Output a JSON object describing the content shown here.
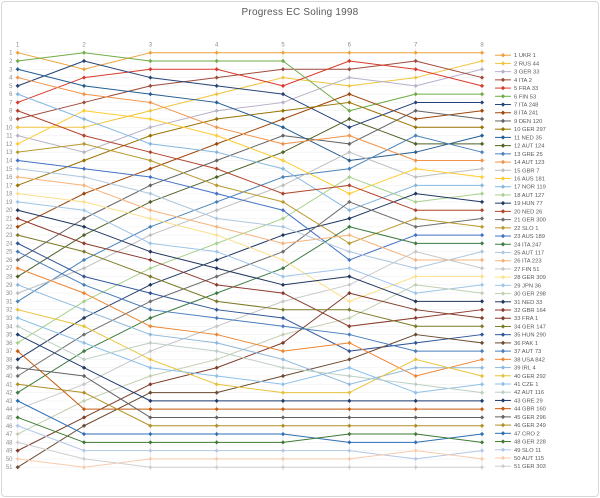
{
  "chart_data": {
    "type": "line",
    "variant": "bump-rank-progress",
    "title": "Progress EC Soling 1998",
    "xlabel": "",
    "ylabel": "",
    "x_ticks": [
      1,
      2,
      3,
      4,
      5,
      6,
      7,
      8
    ],
    "y_axis": {
      "min": 1,
      "max": 51,
      "step": 1,
      "inverted": true
    },
    "grid": true,
    "legend_position": "right",
    "axis_text_color": "#8c8c8c",
    "legend_text_color": "#595959",
    "series": [
      {
        "name": "1 UKR 1",
        "color": "#EDA33B",
        "ranks": [
          1,
          3,
          1,
          1,
          1,
          1,
          1,
          1
        ]
      },
      {
        "name": "2 RUS 44",
        "color": "#EFC53F",
        "ranks": [
          10,
          10,
          8,
          6,
          4,
          5,
          4,
          2
        ]
      },
      {
        "name": "3 GER 33",
        "color": "#B7B1C9",
        "ranks": [
          11,
          13,
          10,
          8,
          7,
          4,
          5,
          3
        ]
      },
      {
        "name": "4 ITA 2",
        "color": "#9E4B3B",
        "ranks": [
          9,
          7,
          5,
          4,
          3,
          3,
          2,
          4
        ]
      },
      {
        "name": "5 FRA 33",
        "color": "#D93A2B",
        "ranks": [
          7,
          4,
          3,
          3,
          5,
          2,
          3,
          5
        ]
      },
      {
        "name": "6 FIN 53",
        "color": "#70AD47",
        "ranks": [
          2,
          1,
          2,
          2,
          2,
          8,
          6,
          6
        ]
      },
      {
        "name": "7 ITA 248",
        "color": "#264478",
        "ranks": [
          5,
          2,
          4,
          5,
          6,
          10,
          7,
          7
        ]
      },
      {
        "name": "8 ITA 241",
        "color": "#9E480E",
        "ranks": [
          22,
          18,
          15,
          12,
          9,
          6,
          9,
          8
        ]
      },
      {
        "name": "9 DEN 120",
        "color": "#636363",
        "ranks": [
          26,
          21,
          17,
          14,
          11,
          12,
          8,
          9
        ]
      },
      {
        "name": "10 GER 297",
        "color": "#997300",
        "ranks": [
          17,
          14,
          11,
          9,
          8,
          7,
          10,
          10
        ]
      },
      {
        "name": "11 NED 35",
        "color": "#255E91",
        "ranks": [
          3,
          5,
          6,
          7,
          10,
          14,
          13,
          11
        ]
      },
      {
        "name": "12 AUT 124",
        "color": "#4F6228",
        "ranks": [
          28,
          23,
          19,
          16,
          13,
          9,
          12,
          12
        ]
      },
      {
        "name": "13 GRE 25",
        "color": "#4983B8",
        "ranks": [
          31,
          26,
          22,
          19,
          16,
          15,
          11,
          13
        ]
      },
      {
        "name": "14 AUT 123",
        "color": "#F0934A",
        "ranks": [
          4,
          6,
          7,
          10,
          12,
          11,
          14,
          14
        ]
      },
      {
        "name": "15 GBR 7",
        "color": "#BFBFBF",
        "ranks": [
          30,
          27,
          23,
          20,
          17,
          13,
          16,
          15
        ]
      },
      {
        "name": "16 AUS 181",
        "color": "#FFCD33",
        "ranks": [
          12,
          8,
          9,
          11,
          14,
          18,
          15,
          16
        ]
      },
      {
        "name": "17 NOR 119",
        "color": "#86B8DF",
        "ranks": [
          6,
          9,
          12,
          13,
          15,
          20,
          17,
          17
        ]
      },
      {
        "name": "18 AUT 127",
        "color": "#A9D18E",
        "ranks": [
          36,
          31,
          27,
          24,
          21,
          16,
          19,
          18
        ]
      },
      {
        "name": "19 HUN 77",
        "color": "#203864",
        "ranks": [
          38,
          33,
          29,
          26,
          23,
          21,
          18,
          19
        ]
      },
      {
        "name": "20 NED 26",
        "color": "#B1432C",
        "ranks": [
          8,
          11,
          13,
          15,
          18,
          17,
          20,
          20
        ]
      },
      {
        "name": "21 GER 300",
        "color": "#6F6F6F",
        "ranks": [
          40,
          35,
          31,
          28,
          25,
          19,
          22,
          21
        ]
      },
      {
        "name": "22 SLO 1",
        "color": "#BA9A2F",
        "ranks": [
          13,
          12,
          14,
          17,
          19,
          24,
          21,
          22
        ]
      },
      {
        "name": "23 AUS 189",
        "color": "#4472C4",
        "ranks": [
          14,
          15,
          16,
          18,
          20,
          26,
          23,
          23
        ]
      },
      {
        "name": "24 ITA 247",
        "color": "#3F7C43",
        "ranks": [
          42,
          37,
          33,
          30,
          27,
          22,
          24,
          24
        ]
      },
      {
        "name": "25 AUT 117",
        "color": "#AEC7E0",
        "ranks": [
          15,
          16,
          18,
          21,
          22,
          25,
          27,
          25
        ]
      },
      {
        "name": "26 ITA 223",
        "color": "#F5B47E",
        "ranks": [
          16,
          17,
          20,
          22,
          24,
          23,
          26,
          26
        ]
      },
      {
        "name": "27 FIN 51",
        "color": "#C8C8C8",
        "ranks": [
          44,
          41,
          37,
          34,
          31,
          29,
          25,
          27
        ]
      },
      {
        "name": "28 GER 309",
        "color": "#FBE08D",
        "ranks": [
          18,
          19,
          21,
          23,
          26,
          31,
          28,
          28
        ]
      },
      {
        "name": "29 JPN 36",
        "color": "#9FC5E8",
        "ranks": [
          19,
          20,
          24,
          25,
          28,
          27,
          30,
          29
        ]
      },
      {
        "name": "30 GER 298",
        "color": "#C2CFB2",
        "ranks": [
          47,
          43,
          40,
          38,
          35,
          33,
          29,
          30
        ]
      },
      {
        "name": "31 NED 33",
        "color": "#22375E",
        "ranks": [
          20,
          22,
          25,
          27,
          29,
          28,
          31,
          31
        ]
      },
      {
        "name": "32 GBR 164",
        "color": "#8C3A2E",
        "ranks": [
          21,
          24,
          26,
          29,
          30,
          34,
          33,
          32
        ]
      },
      {
        "name": "33 FRA 1",
        "color": "#7E3B2A",
        "ranks": [
          49,
          45,
          41,
          39,
          36,
          30,
          32,
          33
        ]
      },
      {
        "name": "34 GER 147",
        "color": "#7E7A29",
        "ranks": [
          23,
          25,
          28,
          31,
          32,
          32,
          34,
          34
        ]
      },
      {
        "name": "35 HUN 290",
        "color": "#2F5597",
        "ranks": [
          24,
          28,
          30,
          32,
          33,
          37,
          36,
          35
        ]
      },
      {
        "name": "36 PAK 1",
        "color": "#6B4A2F",
        "ranks": [
          51,
          46,
          42,
          42,
          40,
          38,
          35,
          36
        ]
      },
      {
        "name": "37 AUT 73",
        "color": "#4A7EBB",
        "ranks": [
          25,
          29,
          32,
          33,
          34,
          35,
          37,
          37
        ]
      },
      {
        "name": "38 USA 842",
        "color": "#ED8733",
        "ranks": [
          27,
          30,
          34,
          35,
          37,
          36,
          40,
          38
        ]
      },
      {
        "name": "39 IRL 4",
        "color": "#8FB8DC",
        "ranks": [
          29,
          32,
          35,
          36,
          38,
          41,
          39,
          39
        ]
      },
      {
        "name": "40 GER 292",
        "color": "#E8C23A",
        "ranks": [
          32,
          34,
          38,
          41,
          42,
          42,
          38,
          40
        ]
      },
      {
        "name": "41 CZE 1",
        "color": "#8FC0E9",
        "ranks": [
          33,
          36,
          39,
          40,
          41,
          39,
          42,
          41
        ]
      },
      {
        "name": "42 AUT 116",
        "color": "#BCCFC4",
        "ranks": [
          34,
          38,
          36,
          37,
          39,
          40,
          41,
          42
        ]
      },
      {
        "name": "43 GRE 29",
        "color": "#1F3B6E",
        "ranks": [
          35,
          39,
          43,
          43,
          43,
          43,
          43,
          43
        ]
      },
      {
        "name": "44 GBR 160",
        "color": "#C55A11",
        "ranks": [
          37,
          44,
          44,
          44,
          44,
          44,
          44,
          44
        ]
      },
      {
        "name": "45 GER 296",
        "color": "#636363",
        "ranks": [
          39,
          40,
          45,
          45,
          45,
          45,
          45,
          45
        ]
      },
      {
        "name": "46 GER 249",
        "color": "#B08F26",
        "ranks": [
          41,
          42,
          46,
          46,
          46,
          46,
          46,
          46
        ]
      },
      {
        "name": "47 CRO 2",
        "color": "#2E6FB3",
        "ranks": [
          43,
          47,
          47,
          47,
          47,
          48,
          48,
          47
        ]
      },
      {
        "name": "48 GER 228",
        "color": "#3E7A34",
        "ranks": [
          45,
          48,
          48,
          48,
          48,
          47,
          47,
          48
        ]
      },
      {
        "name": "49 SLO 11",
        "color": "#B4C7E7",
        "ranks": [
          46,
          49,
          49,
          49,
          49,
          49,
          50,
          49
        ]
      },
      {
        "name": "50 AUT 115",
        "color": "#F8CBAD",
        "ranks": [
          50,
          51,
          50,
          50,
          50,
          50,
          49,
          50
        ]
      },
      {
        "name": "51 GER 303",
        "color": "#CFCFCF",
        "ranks": [
          48,
          50,
          51,
          51,
          51,
          51,
          51,
          51
        ]
      }
    ]
  }
}
